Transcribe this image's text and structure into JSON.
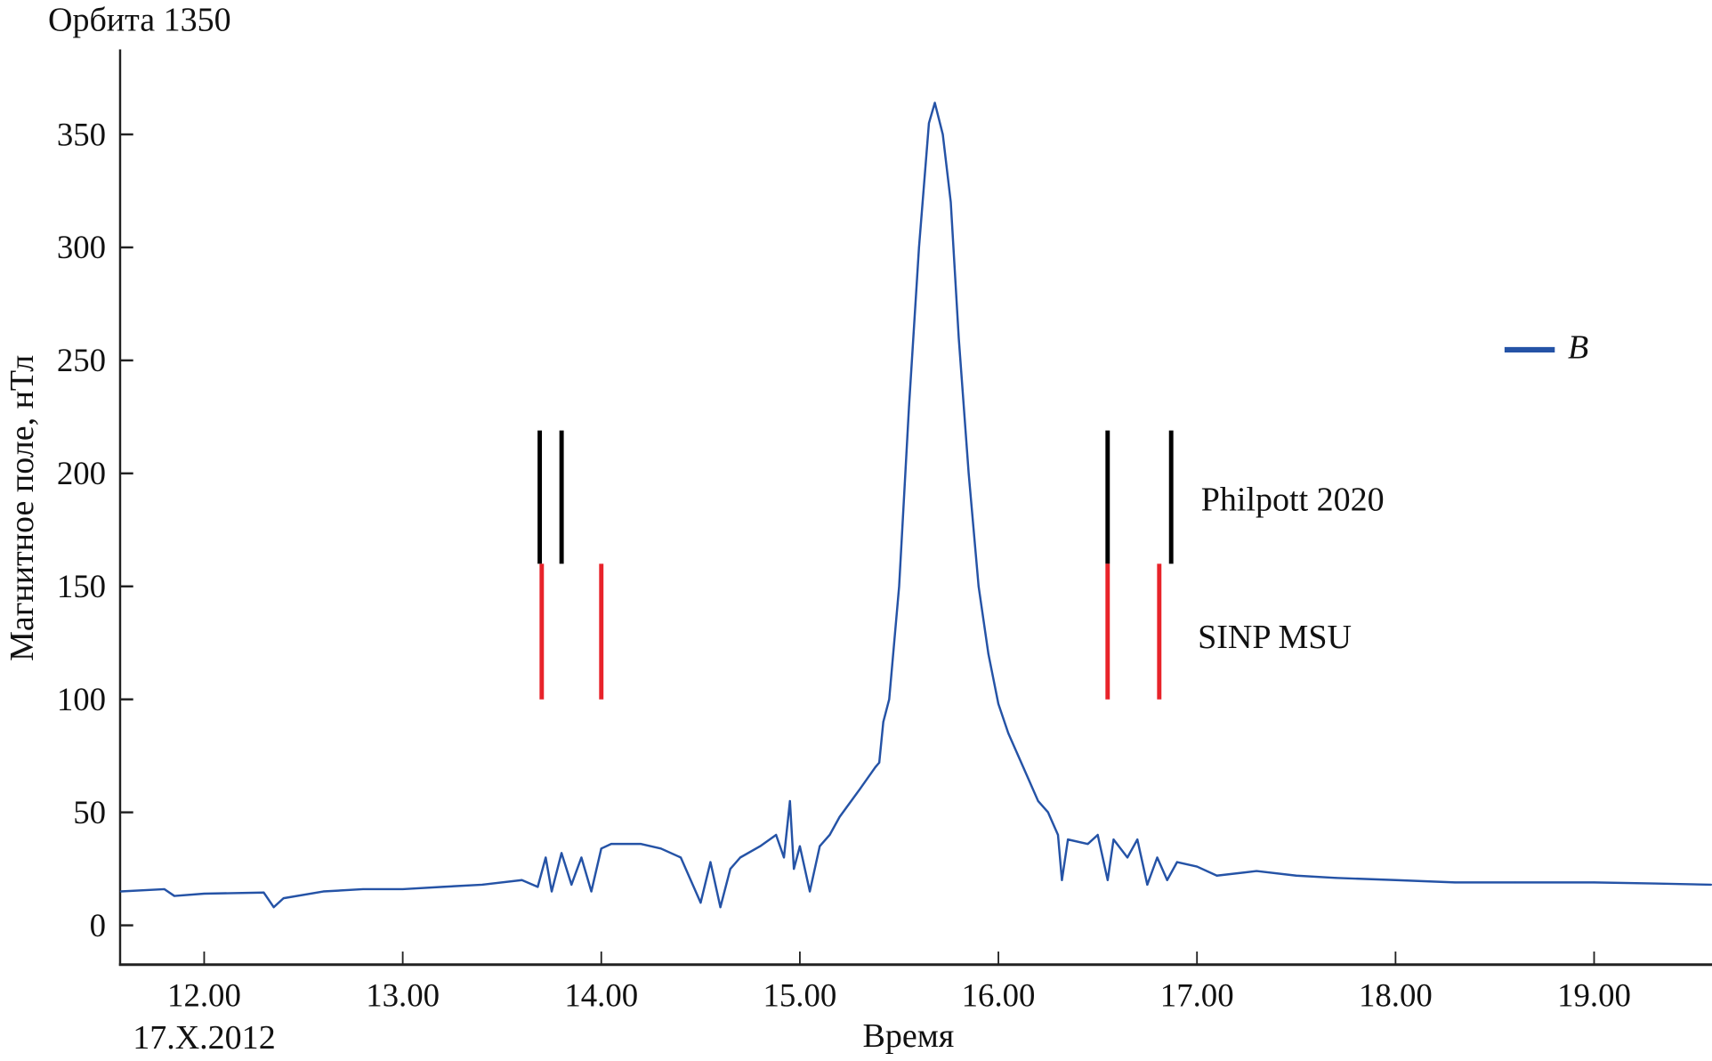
{
  "chart_data": {
    "type": "line",
    "title": "Орбита 1350",
    "xlabel": "Время",
    "ylabel": "Магнитное поле, нТл",
    "date_label": "17.X.2012",
    "xlim": [
      11.58,
      19.59
    ],
    "ylim": [
      -18,
      385
    ],
    "x_ticks": [
      12,
      13,
      14,
      15,
      16,
      17,
      18,
      19
    ],
    "x_tick_labels": [
      "12.00",
      "13.00",
      "14.00",
      "15.00",
      "16.00",
      "17.00",
      "18.00",
      "19.00"
    ],
    "y_ticks": [
      0,
      50,
      100,
      150,
      200,
      250,
      300,
      350
    ],
    "y_tick_labels": [
      "0",
      "50",
      "100",
      "150",
      "200",
      "250",
      "300",
      "350"
    ],
    "grid": false,
    "legend": {
      "position": "right",
      "entries": [
        {
          "name": "B",
          "color": "#2553a6"
        }
      ]
    },
    "series": [
      {
        "name": "B",
        "color": "#2553a6",
        "x": [
          11.58,
          11.8,
          11.85,
          12.0,
          12.3,
          12.35,
          12.4,
          12.6,
          12.8,
          13.0,
          13.2,
          13.4,
          13.6,
          13.68,
          13.72,
          13.75,
          13.8,
          13.85,
          13.9,
          13.95,
          14.0,
          14.05,
          14.2,
          14.3,
          14.4,
          14.45,
          14.5,
          14.55,
          14.6,
          14.65,
          14.7,
          14.8,
          14.88,
          14.92,
          14.95,
          14.97,
          15.0,
          15.05,
          15.1,
          15.15,
          15.2,
          15.3,
          15.38,
          15.4,
          15.42,
          15.45,
          15.5,
          15.55,
          15.6,
          15.65,
          15.68,
          15.72,
          15.76,
          15.8,
          15.85,
          15.9,
          15.95,
          16.0,
          16.05,
          16.1,
          16.15,
          16.2,
          16.25,
          16.3,
          16.32,
          16.35,
          16.45,
          16.5,
          16.55,
          16.58,
          16.65,
          16.7,
          16.75,
          16.8,
          16.85,
          16.9,
          17.0,
          17.1,
          17.3,
          17.5,
          17.7,
          18.0,
          18.3,
          18.6,
          19.0,
          19.3,
          19.59
        ],
        "y": [
          15,
          16,
          13,
          14,
          14.5,
          8,
          12,
          15,
          16,
          16,
          17,
          18,
          20,
          17,
          30,
          15,
          32,
          18,
          30,
          15,
          34,
          36,
          36,
          34,
          30,
          20,
          10,
          28,
          8,
          25,
          30,
          35,
          40,
          30,
          55,
          25,
          35,
          15,
          35,
          40,
          48,
          60,
          70,
          72,
          90,
          100,
          150,
          230,
          300,
          355,
          364,
          350,
          320,
          260,
          200,
          150,
          120,
          98,
          85,
          75,
          65,
          55,
          50,
          40,
          20,
          38,
          36,
          40,
          20,
          38,
          30,
          38,
          18,
          30,
          20,
          28,
          26,
          22,
          24,
          22,
          21,
          20,
          19,
          19,
          19,
          18.5,
          18
        ]
      }
    ],
    "markers": [
      {
        "label": "Philpott 2020",
        "color": "#000000",
        "x": [
          13.69,
          13.8,
          16.55,
          16.87
        ],
        "y_range": [
          160,
          219
        ]
      },
      {
        "label": "SINP MSU",
        "color": "#e8232a",
        "x": [
          13.7,
          14.0,
          16.55,
          16.81
        ],
        "y_range": [
          100,
          160
        ]
      }
    ]
  }
}
